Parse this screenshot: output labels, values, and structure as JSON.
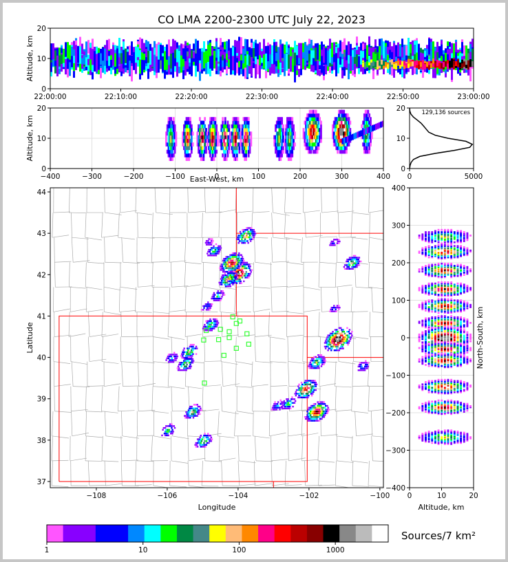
{
  "chart_data": [
    {
      "id": "time_height",
      "type": "heatmap",
      "title": "CO LMA 2200-2300 UTC July 22, 2023",
      "xlabel": "",
      "ylabel": "Altitude, km",
      "x_ticks": [
        "22:00:00",
        "22:10:00",
        "22:20:00",
        "22:30:00",
        "22:40:00",
        "22:50:00",
        "23:00:00"
      ],
      "ylim": [
        0,
        20
      ],
      "y_ticks": [
        0,
        10,
        20
      ],
      "description_values": {
        "core_altitude_km": [
          6,
          14
        ],
        "late_dense_altitude_km": [
          6,
          10
        ]
      }
    },
    {
      "id": "ew_height",
      "type": "heatmap",
      "xlabel": "East-West, km",
      "ylabel": "Altitude, km",
      "xlim": [
        -400,
        400
      ],
      "x_ticks": [
        -400,
        -300,
        -200,
        -100,
        0,
        100,
        200,
        300,
        400
      ],
      "ylim": [
        0,
        20
      ],
      "y_ticks": [
        0,
        10,
        20
      ],
      "blobs_x_km": [
        -110,
        -70,
        -35,
        -10,
        20,
        45,
        70,
        150,
        175,
        230,
        300,
        360
      ]
    },
    {
      "id": "altitude_histogram",
      "type": "line",
      "annotation": "129,136 sources",
      "xlim": [
        0,
        5000
      ],
      "x_ticks": [
        0,
        5000
      ],
      "ylim": [
        0,
        20
      ],
      "y_ticks": [
        0,
        10,
        20
      ],
      "x": [
        5,
        40,
        120,
        300,
        800,
        2000,
        3500,
        4700,
        4900,
        4400,
        3000,
        2000,
        1500,
        1300,
        1100,
        900,
        600,
        300,
        100,
        20,
        5
      ],
      "y": [
        0,
        1,
        2,
        3,
        4,
        5,
        6,
        7,
        8,
        9,
        10,
        11,
        12,
        13,
        14,
        15,
        16,
        17,
        18,
        19,
        20
      ]
    },
    {
      "id": "plan_view",
      "type": "heatmap",
      "xlabel": "Longitude",
      "ylabel": "Latitude",
      "xlim": [
        -109.3,
        -99.9
      ],
      "ylim": [
        36.85,
        44.1
      ],
      "x_ticks": [
        "−108",
        "−106",
        "−104",
        "−102",
        "−100"
      ],
      "y_ticks": [
        37,
        38,
        39,
        40,
        41,
        42,
        43,
        44
      ],
      "storms": [
        {
          "lon": -101.2,
          "lat": 40.45,
          "intensity": 1.0
        },
        {
          "lon": -104.0,
          "lat": 42.05,
          "intensity": 0.9
        },
        {
          "lon": -104.2,
          "lat": 42.3,
          "intensity": 0.8
        },
        {
          "lon": -103.8,
          "lat": 42.95,
          "intensity": 0.6
        },
        {
          "lon": -104.3,
          "lat": 41.9,
          "intensity": 0.6
        },
        {
          "lon": -104.7,
          "lat": 42.6,
          "intensity": 0.4
        },
        {
          "lon": -100.8,
          "lat": 42.3,
          "intensity": 0.5
        },
        {
          "lon": -101.8,
          "lat": 38.7,
          "intensity": 0.8
        },
        {
          "lon": -102.1,
          "lat": 39.25,
          "intensity": 0.75
        },
        {
          "lon": -101.8,
          "lat": 39.9,
          "intensity": 0.5
        },
        {
          "lon": -105.4,
          "lat": 40.15,
          "intensity": 0.5
        },
        {
          "lon": -105.5,
          "lat": 39.85,
          "intensity": 0.5
        },
        {
          "lon": -104.8,
          "lat": 40.8,
          "intensity": 0.45
        },
        {
          "lon": -105.3,
          "lat": 38.7,
          "intensity": 0.5
        },
        {
          "lon": -105.0,
          "lat": 38.0,
          "intensity": 0.5
        },
        {
          "lon": -106.0,
          "lat": 38.25,
          "intensity": 0.4
        },
        {
          "lon": -105.9,
          "lat": 40.0,
          "intensity": 0.3
        },
        {
          "lon": -102.6,
          "lat": 38.9,
          "intensity": 0.4
        },
        {
          "lon": -104.6,
          "lat": 41.5,
          "intensity": 0.35
        },
        {
          "lon": -102.9,
          "lat": 38.85,
          "intensity": 0.3
        },
        {
          "lon": -100.5,
          "lat": 39.8,
          "intensity": 0.3
        },
        {
          "lon": -101.3,
          "lat": 42.8,
          "intensity": 0.2
        },
        {
          "lon": -104.9,
          "lat": 41.25,
          "intensity": 0.25
        },
        {
          "lon": -104.85,
          "lat": 42.8,
          "intensity": 0.15
        },
        {
          "lon": -101.3,
          "lat": 41.2,
          "intensity": 0.2
        }
      ],
      "stations": [
        [
          -104.15,
          40.98
        ],
        [
          -103.95,
          40.88
        ],
        [
          -104.05,
          40.82
        ],
        [
          -104.5,
          40.68
        ],
        [
          -104.9,
          40.65
        ],
        [
          -104.25,
          40.62
        ],
        [
          -103.75,
          40.57
        ],
        [
          -104.25,
          40.48
        ],
        [
          -104.55,
          40.43
        ],
        [
          -104.97,
          40.42
        ],
        [
          -103.7,
          40.32
        ],
        [
          -104.05,
          40.22
        ],
        [
          -104.4,
          40.05
        ],
        [
          -104.95,
          39.38
        ]
      ]
    },
    {
      "id": "ns_height",
      "type": "heatmap",
      "xlabel": "Altitude, km",
      "ylabel": "North-South, km",
      "xlim": [
        0,
        20
      ],
      "x_ticks": [
        0,
        10,
        20
      ],
      "ylim": [
        -400,
        400
      ],
      "y_ticks": [
        -400,
        -300,
        -200,
        -100,
        0,
        100,
        200,
        300,
        400
      ],
      "blobs_y_km": [
        270,
        230,
        180,
        130,
        85,
        40,
        0,
        -30,
        -60,
        -130,
        -185,
        -265
      ]
    }
  ],
  "colorbar": {
    "label": "Sources/7 km²",
    "tick_labels": [
      "1",
      "10",
      "100",
      "1000"
    ],
    "colors": [
      "#ff55ff",
      "#8800ff",
      "#8800ff",
      "#0000ff",
      "#0000ff",
      "#0088ff",
      "#00ffff",
      "#00ff00",
      "#008844",
      "#448888",
      "#ffff00",
      "#ffbb77",
      "#ff8800",
      "#ff0088",
      "#ff0000",
      "#bb0000",
      "#880000",
      "#000000",
      "#888888",
      "#bbbbbb",
      "#ffffff"
    ]
  }
}
